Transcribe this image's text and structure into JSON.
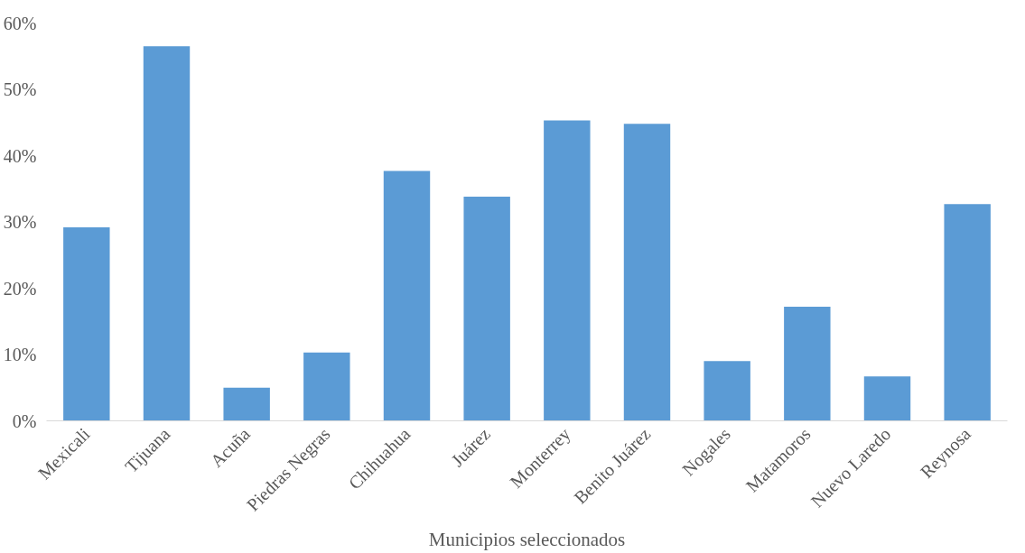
{
  "chart_data": {
    "type": "bar",
    "xlabel": "Municipios seleccionados",
    "categories": [
      "Mexicali",
      "Tijuana",
      "Acuña",
      "Piedras Negras",
      "Chihuahua",
      "Juárez",
      "Monterrey",
      "Benito Juárez",
      "Nogales",
      "Matamoros",
      "Nuevo Laredo",
      "Reynosa"
    ],
    "values": [
      29.2,
      56.5,
      5,
      10.3,
      37.7,
      33.8,
      45.3,
      44.8,
      9,
      17.2,
      6.7,
      32.7
    ],
    "color": "#5b9bd5",
    "ylim": [
      0,
      60
    ],
    "yticks": [
      {
        "value": 0,
        "label": "0%"
      },
      {
        "value": 10,
        "label": "10%"
      },
      {
        "value": 20,
        "label": "20%"
      },
      {
        "value": 30,
        "label": "30%"
      },
      {
        "value": 40,
        "label": "40%"
      },
      {
        "value": 50,
        "label": "50%"
      },
      {
        "value": 60,
        "label": "60%"
      }
    ],
    "grid": false
  }
}
